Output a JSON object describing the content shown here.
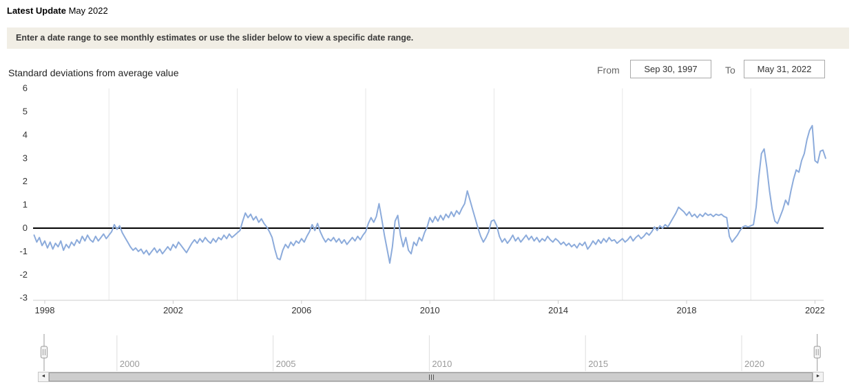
{
  "header": {
    "latest_update_label": "Latest Update",
    "latest_update_value": "May 2022"
  },
  "notice": "Enter a date range to see monthly estimates or use the slider below to view a specific date range.",
  "controls": {
    "from_label": "From",
    "from_value": "Sep 30, 1997",
    "to_label": "To",
    "to_value": "May 31, 2022"
  },
  "icons": {
    "arrow_left": "◄",
    "arrow_right": "►"
  },
  "colors": {
    "series_line": "#8cabdb",
    "notice_bg": "#f1eee5",
    "zero_line": "#000000",
    "gridline": "#e6e6e6",
    "nav_label": "#9a9a9a"
  },
  "chart_data": {
    "type": "line",
    "title": "Standard deviations from average value",
    "xlabel": "",
    "ylabel": "Standard deviations from average value",
    "ylim": [
      -3,
      6
    ],
    "y_ticks": [
      6,
      5,
      4,
      3,
      2,
      1,
      0,
      -1,
      -2,
      -3
    ],
    "x_tick_labels": [
      1998,
      2002,
      2006,
      2010,
      2014,
      2018,
      2022
    ],
    "x_gridlines": [
      2000,
      2004,
      2008,
      2012,
      2016,
      2020
    ],
    "x_range": [
      1997.6667,
      2022.4167
    ],
    "grid": "vertical-only",
    "legend": "none",
    "zero_line": true,
    "frequency": "monthly",
    "series": [
      {
        "name": "Standard deviations from average value",
        "color": "#8cabdb",
        "start_year": 1997,
        "start_month": 9,
        "values": [
          -0.3,
          -0.6,
          -0.4,
          -0.75,
          -0.55,
          -0.85,
          -0.6,
          -0.9,
          -0.65,
          -0.8,
          -0.55,
          -0.95,
          -0.7,
          -0.85,
          -0.6,
          -0.75,
          -0.5,
          -0.65,
          -0.35,
          -0.55,
          -0.3,
          -0.5,
          -0.6,
          -0.35,
          -0.55,
          -0.4,
          -0.25,
          -0.45,
          -0.3,
          -0.15,
          0.15,
          -0.05,
          0.1,
          -0.2,
          -0.4,
          -0.6,
          -0.8,
          -0.95,
          -0.85,
          -1.0,
          -0.9,
          -1.1,
          -0.95,
          -1.15,
          -1.0,
          -0.85,
          -1.05,
          -0.9,
          -1.1,
          -0.95,
          -0.8,
          -0.95,
          -0.7,
          -0.85,
          -0.6,
          -0.75,
          -0.9,
          -1.05,
          -0.85,
          -0.65,
          -0.5,
          -0.65,
          -0.45,
          -0.6,
          -0.4,
          -0.55,
          -0.65,
          -0.45,
          -0.6,
          -0.4,
          -0.5,
          -0.3,
          -0.45,
          -0.25,
          -0.4,
          -0.3,
          -0.2,
          -0.1,
          0.3,
          0.65,
          0.45,
          0.6,
          0.35,
          0.5,
          0.25,
          0.4,
          0.2,
          0.05,
          -0.15,
          -0.4,
          -0.9,
          -1.3,
          -1.35,
          -0.95,
          -0.7,
          -0.85,
          -0.6,
          -0.75,
          -0.55,
          -0.65,
          -0.45,
          -0.6,
          -0.35,
          -0.15,
          0.15,
          -0.1,
          0.2,
          -0.15,
          -0.4,
          -0.6,
          -0.45,
          -0.55,
          -0.4,
          -0.6,
          -0.45,
          -0.65,
          -0.5,
          -0.7,
          -0.55,
          -0.4,
          -0.55,
          -0.35,
          -0.5,
          -0.3,
          -0.15,
          0.2,
          0.45,
          0.25,
          0.5,
          1.05,
          0.4,
          -0.3,
          -0.9,
          -1.5,
          -0.8,
          0.3,
          0.55,
          -0.3,
          -0.8,
          -0.4,
          -0.95,
          -1.1,
          -0.6,
          -0.75,
          -0.4,
          -0.55,
          -0.2,
          0.05,
          0.45,
          0.25,
          0.5,
          0.3,
          0.55,
          0.35,
          0.6,
          0.45,
          0.7,
          0.5,
          0.75,
          0.6,
          0.85,
          1.05,
          1.6,
          1.2,
          0.8,
          0.4,
          0.0,
          -0.35,
          -0.6,
          -0.4,
          -0.15,
          0.3,
          0.35,
          0.1,
          -0.35,
          -0.6,
          -0.45,
          -0.65,
          -0.5,
          -0.3,
          -0.55,
          -0.4,
          -0.6,
          -0.45,
          -0.3,
          -0.5,
          -0.35,
          -0.55,
          -0.4,
          -0.6,
          -0.45,
          -0.55,
          -0.35,
          -0.5,
          -0.6,
          -0.45,
          -0.55,
          -0.7,
          -0.6,
          -0.75,
          -0.65,
          -0.8,
          -0.7,
          -0.85,
          -0.65,
          -0.75,
          -0.6,
          -0.9,
          -0.75,
          -0.55,
          -0.7,
          -0.5,
          -0.65,
          -0.45,
          -0.6,
          -0.4,
          -0.55,
          -0.5,
          -0.65,
          -0.55,
          -0.45,
          -0.6,
          -0.5,
          -0.35,
          -0.55,
          -0.4,
          -0.3,
          -0.45,
          -0.35,
          -0.2,
          -0.3,
          -0.15,
          0.05,
          -0.1,
          0.1,
          0.0,
          0.15,
          0.05,
          0.25,
          0.45,
          0.65,
          0.9,
          0.8,
          0.7,
          0.55,
          0.7,
          0.5,
          0.6,
          0.45,
          0.6,
          0.5,
          0.65,
          0.55,
          0.6,
          0.5,
          0.6,
          0.55,
          0.6,
          0.5,
          0.45,
          -0.35,
          -0.6,
          -0.45,
          -0.3,
          -0.1,
          0.05,
          0.1,
          0.05,
          0.1,
          0.15,
          0.9,
          2.2,
          3.2,
          3.4,
          2.6,
          1.6,
          0.8,
          0.3,
          0.2,
          0.5,
          0.8,
          1.2,
          1.0,
          1.6,
          2.1,
          2.5,
          2.4,
          2.9,
          3.2,
          3.8,
          4.2,
          4.4,
          2.9,
          2.8,
          3.3,
          3.35,
          3.0
        ]
      }
    ],
    "navigator": {
      "labels": [
        "2000",
        "2005",
        "2010",
        "2015",
        "2020"
      ],
      "years": [
        2000,
        2005,
        2010,
        2015,
        2020
      ]
    }
  }
}
